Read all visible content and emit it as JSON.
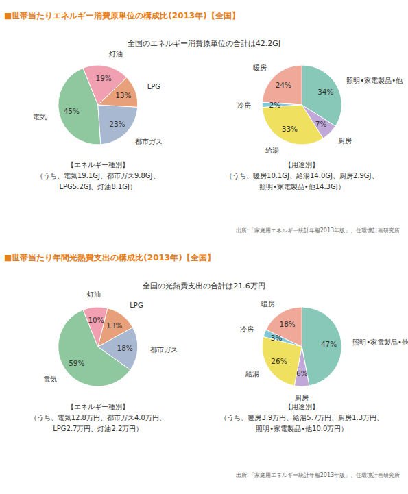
{
  "chart_data": [
    {
      "type": "pie",
      "title": "■世帯当たりエネルギー消費原単位の構成比(2013年)【全国】",
      "subtitle": "全国のエネルギー消費原単位の合計は42.2GJ",
      "categories": [
        "電気",
        "都市ガス",
        "LPG",
        "灯油"
      ],
      "values": [
        45,
        23,
        13,
        19
      ],
      "value_labels": [
        "45%",
        "23%",
        "13%",
        "19%"
      ],
      "colors": [
        "#8fc89e",
        "#a8b8d0",
        "#e8a07a",
        "#f0a0b0"
      ],
      "data_labels": true,
      "annotations": [
        "【エネルギー種別】\n（うち、電気19.1GJ、都市ガス9.8GJ、\nLPG5.2GJ、灯油8.1GJ）"
      ]
    },
    {
      "type": "pie",
      "categories": [
        "暖房",
        "冷房",
        "給湯",
        "厨房",
        "照明•家電製品•他"
      ],
      "values": [
        24,
        2,
        33,
        7,
        34
      ],
      "value_labels": [
        "24%",
        "2%",
        "33%",
        "7%",
        "34%"
      ],
      "colors": [
        "#f0a898",
        "#80c8d8",
        "#f0e060",
        "#c0a8d8",
        "#88c8b8"
      ],
      "data_labels": true,
      "annotations": [
        "【用途別】\n（うち、暖房10.1GJ、給湯14.0GJ、厨房2.9GJ、\n照明•家電製品•他14.3GJ）",
        "出所:「家庭用エネルギー統計年報2013年版」、住環境計画研究所"
      ]
    },
    {
      "type": "pie",
      "title": "■世帯当たり年間光熱費支出の構成比(2013年)【全国】",
      "subtitle": "全国の光熱費支出の合計は21.6万円",
      "categories": [
        "電気",
        "都市ガス",
        "LPG",
        "灯油"
      ],
      "values": [
        59,
        18,
        13,
        10
      ],
      "value_labels": [
        "59%",
        "18%",
        "13%",
        "10%"
      ],
      "colors": [
        "#8fc89e",
        "#a8b8d0",
        "#e8a07a",
        "#f0a0b0"
      ],
      "data_labels": true,
      "annotations": [
        "【エネルギー種別】\n（うち、電気12.8万円、都市ガス4.0万円、\nLPG2.7万円、灯油2.2万円）"
      ]
    },
    {
      "type": "pie",
      "categories": [
        "暖房",
        "冷房",
        "給湯",
        "厨房",
        "照明•家電製品•他"
      ],
      "values": [
        18,
        3,
        26,
        6,
        47
      ],
      "value_labels": [
        "18%",
        "3%",
        "26%",
        "6%",
        "47%"
      ],
      "colors": [
        "#f0a898",
        "#80c8d8",
        "#f0e060",
        "#c0a8d8",
        "#88c8b8"
      ],
      "data_labels": true,
      "annotations": [
        "【用途別】\n（うち、暖房3.9万円、給湯5.7万円、厨房1.3万円、\n照明•家電製品•他10.0万円）",
        "出所:「家庭用エネルギー統計年報2013年版」、住環境計画研究所"
      ]
    }
  ]
}
